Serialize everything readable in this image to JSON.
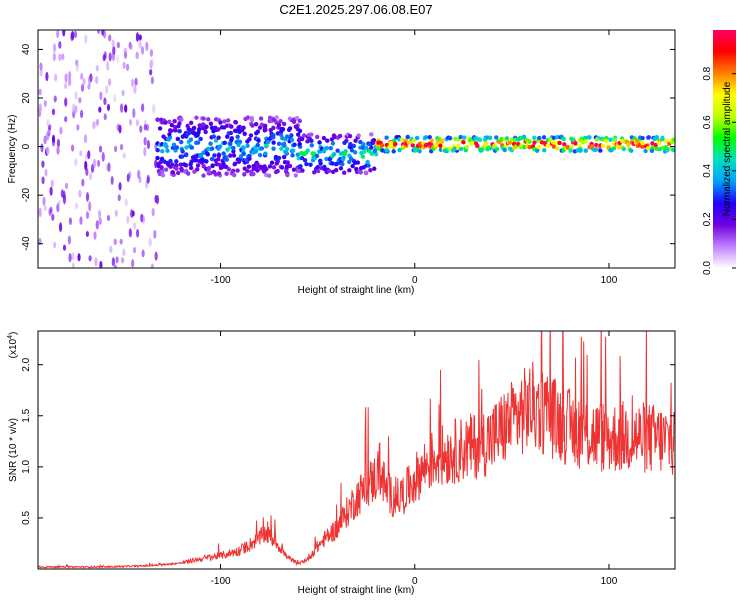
{
  "title": "C2E1.2025.297.06.08.E07",
  "chart_data": [
    {
      "type": "heatmap",
      "xlabel": "Height of straight line (km)",
      "ylabel": "Frequency (Hz)",
      "xlim": [
        -194,
        134
      ],
      "ylim": [
        -50,
        48
      ],
      "x_ticks": [
        -100,
        0,
        100
      ],
      "x_tick_labels": [
        "-100",
        "0",
        "100"
      ],
      "y_ticks": [
        -40,
        -20,
        0,
        20,
        40
      ],
      "y_tick_labels": [
        "-40",
        "-20",
        "0",
        "20",
        "40"
      ],
      "colorbar": {
        "label": "Normalized spectral amplitude",
        "range": [
          0,
          0.98
        ],
        "ticks": [
          0,
          0.2,
          0.4,
          0.6,
          0.8
        ],
        "tick_labels": [
          "0.0",
          "0.2",
          "0.4",
          "0.6",
          "0.8"
        ],
        "colormap": [
          "#ffffff",
          "#c080ff",
          "#7000e0",
          "#2000ff",
          "#00a0ff",
          "#00e0c0",
          "#00ff00",
          "#c0ff00",
          "#ffff00",
          "#ff8000",
          "#ff0000",
          "#ff0060"
        ]
      },
      "regions": [
        {
          "x_range": [
            -194,
            -133
          ],
          "freq_range": [
            -50,
            48
          ],
          "amplitude": 0.12,
          "pattern": "scattered noise"
        },
        {
          "x_range": [
            -133,
            -60
          ],
          "freq_center": 0,
          "freq_halfwidth": 12,
          "amplitude": 0.35
        },
        {
          "x_range": [
            -60,
            -20
          ],
          "freq_center": -3,
          "freq_halfwidth": 8,
          "amplitude": 0.4
        },
        {
          "x_range": [
            -20,
            134
          ],
          "freq_center": 1,
          "freq_halfwidth": 3,
          "amplitude": 0.9
        }
      ]
    },
    {
      "type": "line",
      "xlabel": "Height of straight line (km)",
      "ylabel": "SNR (10 * v/v)",
      "y_multiplier": "(x10",
      "y_exponent": "4",
      "y_multiplier_close": ")",
      "xlim": [
        -194,
        134
      ],
      "ylim": [
        0,
        2.33
      ],
      "x_ticks": [
        -100,
        0,
        100
      ],
      "x_tick_labels": [
        "-100",
        "0",
        "100"
      ],
      "y_ticks": [
        0.5,
        1.0,
        1.5,
        2.0
      ],
      "y_tick_labels": [
        "0.5",
        "1.0",
        "1.5",
        "2.0"
      ],
      "color": "#ee3333",
      "series": [
        {
          "name": "SNR",
          "x": [
            -194,
            -160,
            -140,
            -130,
            -120,
            -110,
            -100,
            -90,
            -85,
            -80,
            -77,
            -72,
            -66,
            -60,
            -55,
            -50,
            -45,
            -40,
            -35,
            -30,
            -25,
            -20,
            -18,
            -15,
            -10,
            -5,
            0,
            5,
            10,
            20,
            30,
            40,
            50,
            60,
            70,
            80,
            90,
            100,
            110,
            120,
            134
          ],
          "y": [
            0.02,
            0.02,
            0.03,
            0.04,
            0.06,
            0.1,
            0.13,
            0.18,
            0.24,
            0.3,
            0.35,
            0.28,
            0.12,
            0.05,
            0.1,
            0.22,
            0.32,
            0.4,
            0.55,
            0.7,
            0.8,
            0.9,
            1.0,
            0.78,
            0.68,
            0.75,
            0.88,
            1.0,
            1.08,
            1.15,
            1.2,
            1.28,
            1.45,
            1.6,
            1.5,
            1.38,
            1.32,
            1.28,
            1.3,
            1.28,
            1.25
          ]
        }
      ]
    }
  ]
}
